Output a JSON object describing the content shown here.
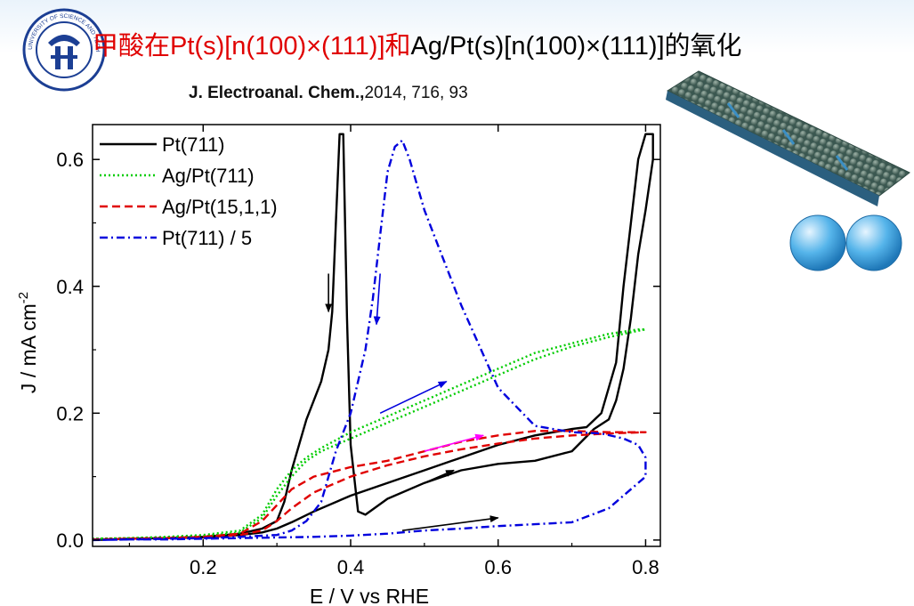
{
  "slide": {
    "title_part1": "甲酸在",
    "title_part2": "Pt(s)[n(100)×(111)]",
    "title_part3": "和",
    "title_part4": "Ag/Pt(s)[n(100)×(111)]",
    "title_part5": "的氧化",
    "citation_journal": "J. Electroanal. Chem.,",
    "citation_rest": "2014, 716, 93",
    "logo_text": "UNIVERSITY OF SCIENCE AND TECHNOLOGY",
    "accent_red": "#e00000"
  },
  "chart_data": {
    "type": "line",
    "xlabel": "E / V vs RHE",
    "ylabel": "J / mA cm",
    "ylabel_superscript": "-2",
    "xlim": [
      0.05,
      0.82
    ],
    "ylim": [
      -0.01,
      0.655
    ],
    "xticks": [
      0.2,
      0.4,
      0.6,
      0.8
    ],
    "xtick_labels": [
      "0.2",
      "0.4",
      "0.6",
      "0.8"
    ],
    "yticks": [
      0.0,
      0.2,
      0.4,
      0.6
    ],
    "ytick_labels": [
      "0.0",
      "0.2",
      "0.4",
      "0.6"
    ],
    "legend_position": "top-left",
    "series": [
      {
        "name": "Pt(711)",
        "color": "#000000",
        "dash": "solid",
        "x": [
          0.05,
          0.1,
          0.15,
          0.2,
          0.25,
          0.28,
          0.3,
          0.32,
          0.35,
          0.4,
          0.45,
          0.5,
          0.55,
          0.6,
          0.65,
          0.7,
          0.72,
          0.74,
          0.76,
          0.77,
          0.78,
          0.79,
          0.8,
          0.81,
          0.81,
          0.8,
          0.79,
          0.78,
          0.77,
          0.76,
          0.75,
          0.73,
          0.7,
          0.65,
          0.6,
          0.55,
          0.5,
          0.45,
          0.42,
          0.41,
          0.4,
          0.395,
          0.39,
          0.385,
          0.38,
          0.375,
          0.37,
          0.36,
          0.35,
          0.34,
          0.33,
          0.32,
          0.31,
          0.3,
          0.28,
          0.25,
          0.2,
          0.15,
          0.1,
          0.05
        ],
        "y": [
          0.0,
          0.002,
          0.003,
          0.004,
          0.008,
          0.012,
          0.018,
          0.028,
          0.045,
          0.07,
          0.09,
          0.11,
          0.13,
          0.15,
          0.165,
          0.175,
          0.178,
          0.2,
          0.28,
          0.4,
          0.5,
          0.6,
          0.64,
          0.64,
          0.6,
          0.52,
          0.45,
          0.35,
          0.27,
          0.22,
          0.19,
          0.175,
          0.14,
          0.125,
          0.12,
          0.11,
          0.09,
          0.065,
          0.04,
          0.045,
          0.15,
          0.35,
          0.64,
          0.64,
          0.5,
          0.36,
          0.3,
          0.25,
          0.22,
          0.19,
          0.15,
          0.11,
          0.06,
          0.03,
          0.018,
          0.01,
          0.005,
          0.003,
          0.002,
          0.0
        ]
      },
      {
        "name": "Ag/Pt(711)",
        "color": "#00cc00",
        "dash": "dot",
        "x": [
          0.05,
          0.1,
          0.15,
          0.2,
          0.25,
          0.28,
          0.3,
          0.32,
          0.34,
          0.36,
          0.4,
          0.45,
          0.5,
          0.55,
          0.6,
          0.65,
          0.7,
          0.75,
          0.79,
          0.8,
          0.79,
          0.75,
          0.7,
          0.65,
          0.6,
          0.55,
          0.5,
          0.45,
          0.4,
          0.36,
          0.34,
          0.32,
          0.3,
          0.28,
          0.25,
          0.2,
          0.15,
          0.1,
          0.05
        ],
        "y": [
          0.002,
          0.003,
          0.005,
          0.008,
          0.015,
          0.04,
          0.08,
          0.11,
          0.13,
          0.145,
          0.17,
          0.195,
          0.22,
          0.245,
          0.27,
          0.295,
          0.31,
          0.325,
          0.332,
          0.332,
          0.33,
          0.32,
          0.305,
          0.285,
          0.26,
          0.235,
          0.21,
          0.185,
          0.16,
          0.14,
          0.125,
          0.1,
          0.07,
          0.035,
          0.012,
          0.006,
          0.004,
          0.003,
          0.002
        ]
      },
      {
        "name": "Ag/Pt(15,1,1)",
        "color": "#e00000",
        "dash": "dash",
        "x": [
          0.05,
          0.1,
          0.15,
          0.2,
          0.25,
          0.28,
          0.3,
          0.32,
          0.35,
          0.4,
          0.45,
          0.5,
          0.55,
          0.6,
          0.65,
          0.7,
          0.75,
          0.8,
          0.75,
          0.7,
          0.65,
          0.6,
          0.55,
          0.5,
          0.45,
          0.4,
          0.35,
          0.32,
          0.3,
          0.28,
          0.25,
          0.2,
          0.15,
          0.1,
          0.05
        ],
        "y": [
          0.001,
          0.002,
          0.003,
          0.005,
          0.01,
          0.03,
          0.055,
          0.08,
          0.1,
          0.115,
          0.125,
          0.14,
          0.155,
          0.165,
          0.172,
          0.172,
          0.17,
          0.17,
          0.168,
          0.165,
          0.16,
          0.152,
          0.143,
          0.132,
          0.118,
          0.1,
          0.075,
          0.05,
          0.03,
          0.015,
          0.008,
          0.005,
          0.003,
          0.002,
          0.001
        ]
      },
      {
        "name": "Pt(711) / 5",
        "color": "#0000dd",
        "dash": "dashdot",
        "x": [
          0.05,
          0.1,
          0.15,
          0.2,
          0.25,
          0.3,
          0.35,
          0.4,
          0.45,
          0.5,
          0.55,
          0.6,
          0.65,
          0.7,
          0.75,
          0.8,
          0.8,
          0.79,
          0.77,
          0.74,
          0.7,
          0.65,
          0.6,
          0.55,
          0.52,
          0.5,
          0.48,
          0.47,
          0.46,
          0.45,
          0.44,
          0.43,
          0.42,
          0.41,
          0.4,
          0.39,
          0.38,
          0.36,
          0.34,
          0.32,
          0.3,
          0.25,
          0.2,
          0.15,
          0.1,
          0.05
        ],
        "y": [
          0.0,
          0.001,
          0.001,
          0.002,
          0.003,
          0.004,
          0.005,
          0.007,
          0.01,
          0.015,
          0.018,
          0.022,
          0.025,
          0.028,
          0.05,
          0.1,
          0.13,
          0.15,
          0.16,
          0.168,
          0.17,
          0.18,
          0.24,
          0.37,
          0.46,
          0.52,
          0.6,
          0.63,
          0.62,
          0.58,
          0.48,
          0.38,
          0.3,
          0.25,
          0.2,
          0.17,
          0.14,
          0.06,
          0.03,
          0.015,
          0.008,
          0.005,
          0.003,
          0.002,
          0.001,
          0.0
        ]
      }
    ],
    "arrows": [
      {
        "color": "#000000",
        "x1": 0.37,
        "y1": 0.42,
        "x2": 0.37,
        "y2": 0.36
      },
      {
        "color": "#0000dd",
        "x1": 0.44,
        "y1": 0.42,
        "x2": 0.435,
        "y2": 0.34
      },
      {
        "color": "#0000dd",
        "x1": 0.44,
        "y1": 0.2,
        "x2": 0.53,
        "y2": 0.25
      },
      {
        "color": "#ff00ff",
        "x1": 0.5,
        "y1": 0.14,
        "x2": 0.58,
        "y2": 0.165
      },
      {
        "color": "#000000",
        "x1": 0.45,
        "y1": 0.065,
        "x2": 0.54,
        "y2": 0.11
      },
      {
        "color": "#000000",
        "x1": 0.47,
        "y1": 0.015,
        "x2": 0.6,
        "y2": 0.035
      }
    ]
  }
}
